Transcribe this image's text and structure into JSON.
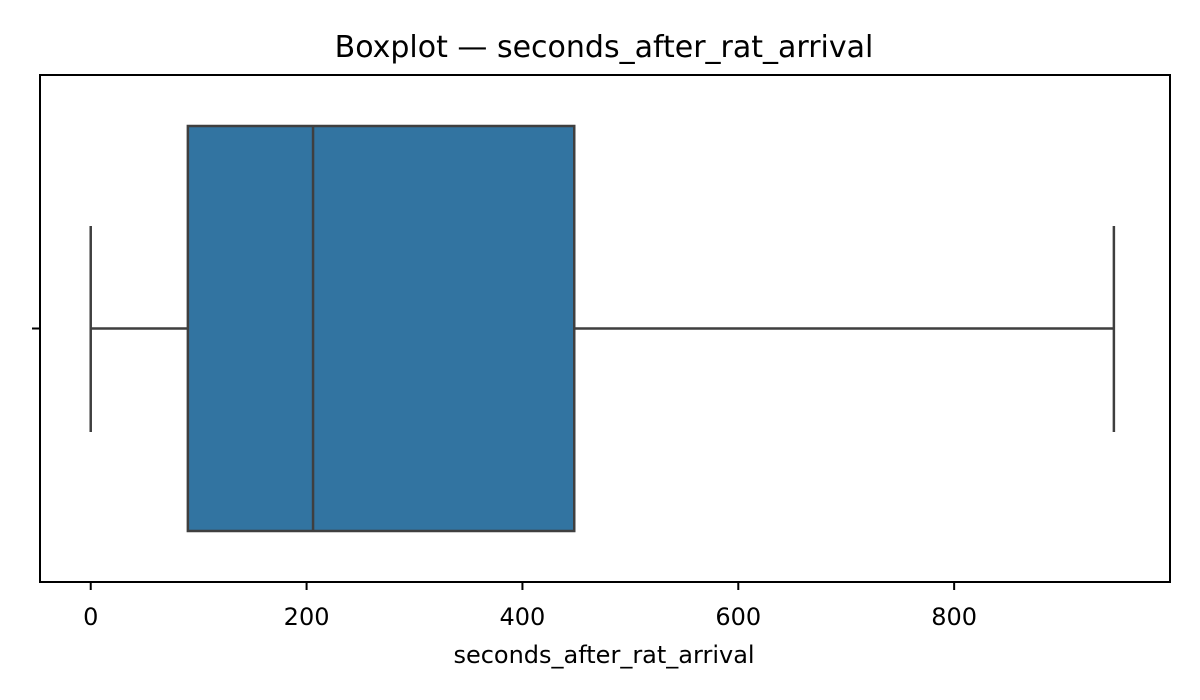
{
  "chart_data": {
    "type": "boxplot",
    "title": "Boxplot — seconds_after_rat_arrival",
    "xlabel": "seconds_after_rat_arrival",
    "ylabel": "",
    "orientation": "horizontal",
    "xlim": [
      -47,
      1000
    ],
    "x_ticks": [
      0,
      200,
      400,
      600,
      800
    ],
    "x_tick_labels": [
      "0",
      "200",
      "400",
      "600",
      "800"
    ],
    "grid": false,
    "legend": "none",
    "box": {
      "whisker_low": 0,
      "q1": 90,
      "median": 206,
      "q3": 448,
      "whisker_high": 948
    },
    "colors": {
      "box_fill": "#3274a1",
      "line": "#3f3f3f"
    }
  }
}
